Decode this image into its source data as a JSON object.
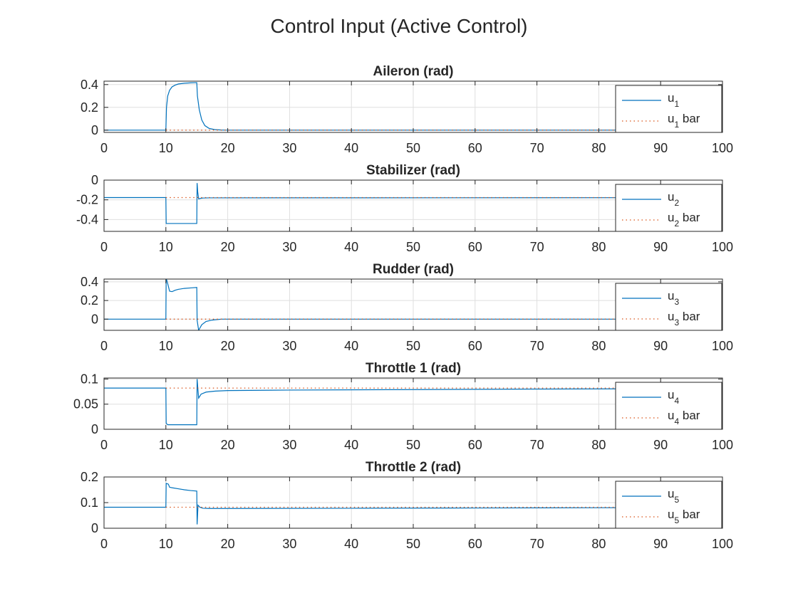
{
  "figure_title": "Control Input (Active Control)",
  "colors": {
    "signal": "#0072BD",
    "reference": "#D95319",
    "axis": "#262626",
    "grid": "#DFDFDF"
  },
  "chart_data": [
    {
      "type": "line",
      "title": "Aileron (rad)",
      "xlim": [
        0,
        100
      ],
      "ylim": [
        -0.02,
        0.43
      ],
      "xticks": [
        0,
        10,
        20,
        30,
        40,
        50,
        60,
        70,
        80,
        90,
        100
      ],
      "yticks": [
        0,
        0.2,
        0.4
      ],
      "ytick_labels": [
        "0",
        "0.2",
        "0.4"
      ],
      "grid": true,
      "legend": {
        "placement": "right",
        "entries": [
          {
            "base": "u",
            "sub": "1",
            "suffix": ""
          },
          {
            "base": "u",
            "sub": "1",
            "suffix": " bar"
          }
        ]
      },
      "series": [
        {
          "name": "u1",
          "style": "solid",
          "color": "#0072BD",
          "x": [
            0,
            10,
            10.1,
            10.3,
            10.6,
            11,
            11.5,
            12,
            13,
            14,
            15,
            15.1,
            15.4,
            15.8,
            16.3,
            17,
            18,
            19,
            20,
            100
          ],
          "y": [
            0,
            0,
            0.2,
            0.3,
            0.35,
            0.38,
            0.395,
            0.405,
            0.412,
            0.415,
            0.417,
            0.3,
            0.18,
            0.09,
            0.04,
            0.015,
            0.004,
            0.001,
            0,
            0
          ]
        },
        {
          "name": "u1 bar",
          "style": "dotted",
          "color": "#D95319",
          "x": [
            10,
            100
          ],
          "y": [
            0,
            0
          ]
        }
      ]
    },
    {
      "type": "line",
      "title": "Stabilizer (rad)",
      "xlim": [
        0,
        100
      ],
      "ylim": [
        -0.52,
        0
      ],
      "xticks": [
        0,
        10,
        20,
        30,
        40,
        50,
        60,
        70,
        80,
        90,
        100
      ],
      "yticks": [
        -0.4,
        -0.2,
        0
      ],
      "ytick_labels": [
        "-0.4",
        "-0.2",
        "0"
      ],
      "grid": true,
      "legend": {
        "placement": "right",
        "entries": [
          {
            "base": "u",
            "sub": "2",
            "suffix": ""
          },
          {
            "base": "u",
            "sub": "2",
            "suffix": " bar"
          }
        ]
      },
      "series": [
        {
          "name": "u2",
          "style": "solid",
          "color": "#0072BD",
          "x": [
            0,
            10,
            10.05,
            15,
            15.05,
            15.15,
            15.3,
            15.6,
            16,
            17,
            100
          ],
          "y": [
            -0.177,
            -0.177,
            -0.44,
            -0.44,
            -0.03,
            -0.12,
            -0.19,
            -0.185,
            -0.182,
            -0.18,
            -0.178
          ]
        },
        {
          "name": "u2 bar",
          "style": "dotted",
          "color": "#D95319",
          "x": [
            10,
            100
          ],
          "y": [
            -0.177,
            -0.177
          ]
        }
      ]
    },
    {
      "type": "line",
      "title": "Rudder (rad)",
      "xlim": [
        0,
        100
      ],
      "ylim": [
        -0.12,
        0.43
      ],
      "xticks": [
        0,
        10,
        20,
        30,
        40,
        50,
        60,
        70,
        80,
        90,
        100
      ],
      "yticks": [
        0,
        0.2,
        0.4
      ],
      "ytick_labels": [
        "0",
        "0.2",
        "0.4"
      ],
      "grid": true,
      "legend": {
        "placement": "right",
        "entries": [
          {
            "base": "u",
            "sub": "3",
            "suffix": ""
          },
          {
            "base": "u",
            "sub": "3",
            "suffix": " bar"
          }
        ]
      },
      "series": [
        {
          "name": "u3",
          "style": "solid",
          "color": "#0072BD",
          "x": [
            0,
            10,
            10.05,
            10.3,
            10.6,
            11,
            11.5,
            12,
            13,
            14,
            15,
            15.05,
            15.3,
            15.8,
            16.5,
            17.5,
            19,
            100
          ],
          "y": [
            0,
            0,
            0.44,
            0.38,
            0.3,
            0.295,
            0.31,
            0.32,
            0.33,
            0.335,
            0.34,
            -0.01,
            -0.12,
            -0.06,
            -0.025,
            -0.01,
            0,
            0
          ]
        },
        {
          "name": "u3 bar",
          "style": "dotted",
          "color": "#D95319",
          "x": [
            10,
            100
          ],
          "y": [
            0,
            0
          ]
        }
      ]
    },
    {
      "type": "line",
      "title": "Throttle 1 (rad)",
      "xlim": [
        0,
        100
      ],
      "ylim": [
        0,
        0.102
      ],
      "xticks": [
        0,
        10,
        20,
        30,
        40,
        50,
        60,
        70,
        80,
        90,
        100
      ],
      "yticks": [
        0,
        0.05,
        0.1
      ],
      "ytick_labels": [
        "0",
        "0.05",
        "0.1"
      ],
      "grid": true,
      "legend": {
        "placement": "right",
        "entries": [
          {
            "base": "u",
            "sub": "4",
            "suffix": ""
          },
          {
            "base": "u",
            "sub": "4",
            "suffix": " bar"
          }
        ]
      },
      "series": [
        {
          "name": "u4",
          "style": "solid",
          "color": "#0072BD",
          "x": [
            0,
            10,
            10.05,
            10.3,
            15,
            15.05,
            15.3,
            15.7,
            16.5,
            18,
            20,
            30,
            50,
            70,
            100
          ],
          "y": [
            0.082,
            0.082,
            0.012,
            0.009,
            0.009,
            0.1,
            0.062,
            0.07,
            0.074,
            0.076,
            0.077,
            0.078,
            0.079,
            0.08,
            0.081
          ]
        },
        {
          "name": "u4 bar",
          "style": "dotted",
          "color": "#D95319",
          "x": [
            10,
            100
          ],
          "y": [
            0.082,
            0.082
          ]
        }
      ]
    },
    {
      "type": "line",
      "title": "Throttle 2 (rad)",
      "xlim": [
        0,
        100
      ],
      "ylim": [
        0,
        0.2
      ],
      "xticks": [
        0,
        10,
        20,
        30,
        40,
        50,
        60,
        70,
        80,
        90,
        100
      ],
      "yticks": [
        0,
        0.1,
        0.2
      ],
      "ytick_labels": [
        "0",
        "0.1",
        "0.2"
      ],
      "grid": true,
      "legend": {
        "placement": "right",
        "entries": [
          {
            "base": "u",
            "sub": "5",
            "suffix": ""
          },
          {
            "base": "u",
            "sub": "5",
            "suffix": " bar"
          }
        ]
      },
      "series": [
        {
          "name": "u5",
          "style": "solid",
          "color": "#0072BD",
          "x": [
            0,
            10,
            10.05,
            10.4,
            10.6,
            11,
            12,
            13,
            14,
            15,
            15.05,
            15.2,
            15.5,
            16,
            17,
            20,
            40,
            60,
            80,
            100
          ],
          "y": [
            0.082,
            0.082,
            0.175,
            0.172,
            0.16,
            0.158,
            0.154,
            0.15,
            0.147,
            0.145,
            0.015,
            0.09,
            0.082,
            0.078,
            0.077,
            0.077,
            0.078,
            0.079,
            0.08,
            0.081
          ]
        },
        {
          "name": "u5 bar",
          "style": "dotted",
          "color": "#D95319",
          "x": [
            10,
            100
          ],
          "y": [
            0.082,
            0.082
          ]
        }
      ]
    }
  ]
}
